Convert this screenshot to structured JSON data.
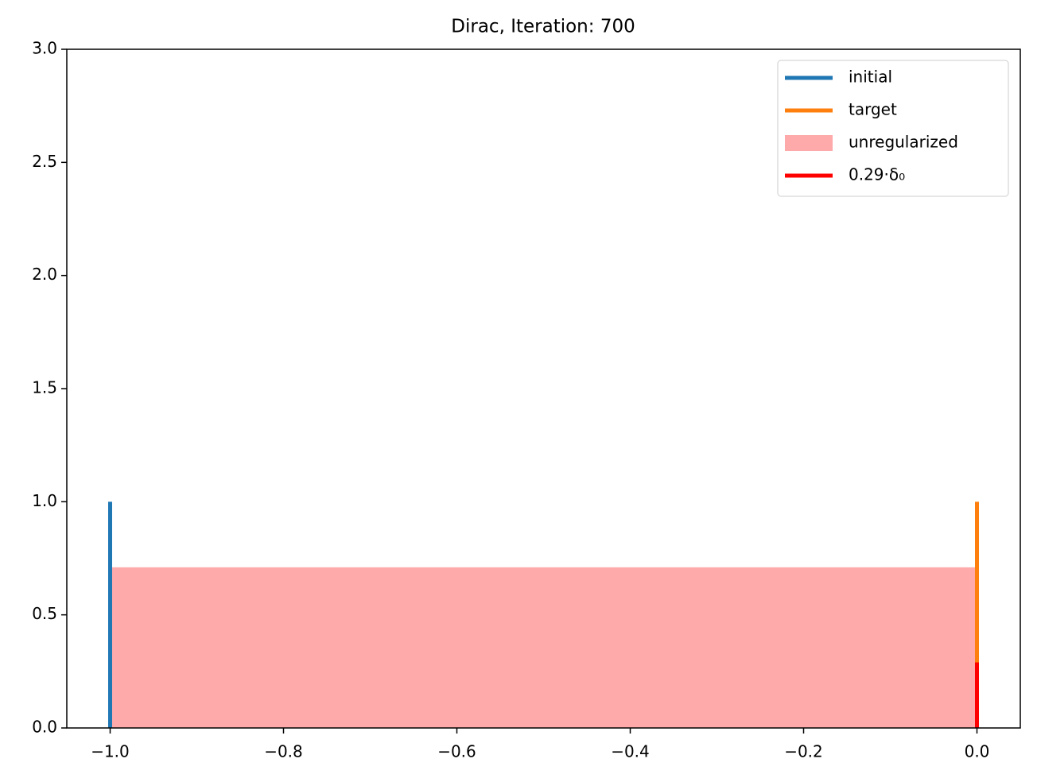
{
  "chart_data": {
    "type": "line",
    "title": "Dirac, Iteration: 700",
    "xlim": [
      -1.05,
      0.05
    ],
    "xticks": [
      {
        "value": -1.0,
        "label": "−1.0"
      },
      {
        "value": -0.8,
        "label": "−0.8"
      },
      {
        "value": -0.6,
        "label": "−0.6"
      },
      {
        "value": -0.4,
        "label": "−0.4"
      },
      {
        "value": -0.2,
        "label": "−0.2"
      },
      {
        "value": 0.0,
        "label": "0.0"
      }
    ],
    "ylim": [
      0,
      3
    ],
    "yticks": [
      {
        "value": 0,
        "label": "0.0"
      },
      0.5,
      {
        "value": 1,
        "label": "1.0"
      },
      1.5,
      {
        "value": 2,
        "label": "2.0"
      },
      2.5,
      {
        "value": 3,
        "label": "3.0"
      }
    ],
    "legend": "upper right",
    "series": [
      {
        "name": "initial",
        "color": "#1f77b4",
        "style": "line",
        "x": [
          -1,
          -1
        ],
        "values": [
          0,
          1
        ]
      },
      {
        "name": "target",
        "color": "#ff7f0e",
        "style": "line",
        "x": [
          0,
          0
        ],
        "values": [
          0,
          1
        ]
      },
      {
        "name": "unregularized",
        "color": "#ffaaaa",
        "style": "area",
        "x": [
          -1,
          0
        ],
        "values": [
          0.71,
          0.71
        ]
      },
      {
        "name": "0.29·δ₀",
        "color": "#ff0000",
        "style": "line",
        "x": [
          0,
          0
        ],
        "values": [
          0,
          0.29
        ]
      }
    ]
  }
}
